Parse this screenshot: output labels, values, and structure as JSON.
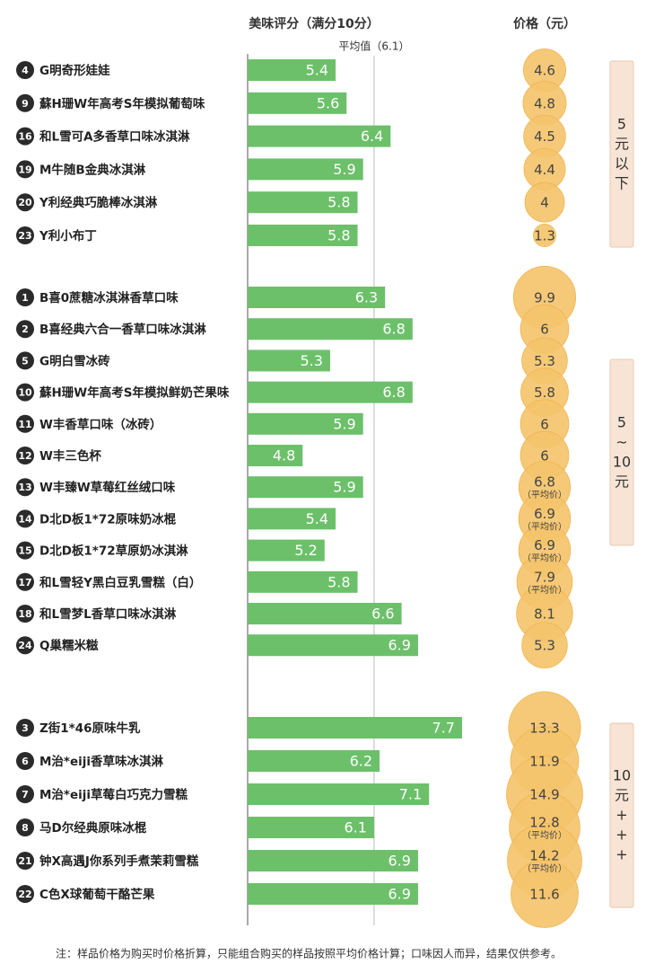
{
  "chart_data": {
    "type": "bar",
    "x_label": "美味评分（满分10分）",
    "price_label": "价格（元）",
    "reference": {
      "value": 6.1,
      "label": "平均值（6.1）"
    },
    "xlim": [
      3.8,
      8.5
    ],
    "bar_color": "#6cc06a",
    "price_color": "#f4c46c",
    "groups": [
      {
        "label": "5元以下",
        "items": [
          {
            "rank": 4,
            "name": "G明奇形娃娃",
            "score": 5.4,
            "price": 4.6
          },
          {
            "rank": 9,
            "name": "蘇H珊W年高考S年模拟葡萄味",
            "score": 5.6,
            "price": 4.8
          },
          {
            "rank": 16,
            "name": "和L雪可A多香草口味冰淇淋",
            "score": 6.4,
            "price": 4.5
          },
          {
            "rank": 19,
            "name": "M牛随B金典冰淇淋",
            "score": 5.9,
            "price": 4.4
          },
          {
            "rank": 20,
            "name": "Y利经典巧脆棒冰淇淋",
            "score": 5.8,
            "price": 4
          },
          {
            "rank": 23,
            "name": "Y利小布丁",
            "score": 5.8,
            "price": 1.3
          }
        ]
      },
      {
        "label": "5~10元",
        "items": [
          {
            "rank": 1,
            "name": "B喜0蔗糖冰淇淋香草口味",
            "score": 6.3,
            "price": 9.9
          },
          {
            "rank": 2,
            "name": "B喜经典六合一香草口味冰淇淋",
            "score": 6.8,
            "price": 6
          },
          {
            "rank": 5,
            "name": "G明白雪冰砖",
            "score": 5.3,
            "price": 5.3
          },
          {
            "rank": 10,
            "name": "蘇H珊W年高考S年模拟鲜奶芒果味",
            "score": 6.8,
            "price": 5.8
          },
          {
            "rank": 11,
            "name": "W丰香草口味（冰砖）",
            "score": 5.9,
            "price": 6
          },
          {
            "rank": 12,
            "name": "W丰三色杯",
            "score": 4.8,
            "price": 6
          },
          {
            "rank": 13,
            "name": "W丰臻W草莓红丝绒口味",
            "score": 5.9,
            "price": 6.8,
            "price_note": "（平均价）"
          },
          {
            "rank": 14,
            "name": "D北D板1*72原味奶冰棍",
            "score": 5.4,
            "price": 6.9,
            "price_note": "（平均价）"
          },
          {
            "rank": 15,
            "name": "D北D板1*72草原奶冰淇淋",
            "score": 5.2,
            "price": 6.9,
            "price_note": "（平均价）"
          },
          {
            "rank": 17,
            "name": "和L雪轻Y黑白豆乳雪糕（白）",
            "score": 5.8,
            "price": 7.9,
            "price_note": "（平均价）"
          },
          {
            "rank": 18,
            "name": "和L雪梦L香草口味冰淇淋",
            "score": 6.6,
            "price": 8.1
          },
          {
            "rank": 24,
            "name": "Q巢糯米糍",
            "score": 6.9,
            "price": 5.3
          }
        ]
      },
      {
        "label": "10元+++",
        "items": [
          {
            "rank": 3,
            "name": "Z街1*46原味牛乳",
            "score": 7.7,
            "price": 13.3
          },
          {
            "rank": 6,
            "name": "M治*eiji香草味冰淇淋",
            "score": 6.2,
            "price": 11.9
          },
          {
            "rank": 7,
            "name": "M治*eiji草莓白巧克力雪糕",
            "score": 7.1,
            "price": 14.9
          },
          {
            "rank": 8,
            "name": "马D尔经典原味冰棍",
            "score": 6.1,
            "price": 12.8,
            "price_note": "（平均价）"
          },
          {
            "rank": 21,
            "name": "钟X高遇J你系列手煮茉莉雪糕",
            "score": 6.9,
            "price": 14.2,
            "price_note": "（平均价）"
          },
          {
            "rank": 22,
            "name": "C色X球葡萄干酪芒果",
            "score": 6.9,
            "price": 11.6
          }
        ]
      }
    ],
    "footnote": "注：样品价格为购买时价格折算，只能组合购买的样品按照平均价格计算；口味因人而异，结果仅供参考。"
  }
}
